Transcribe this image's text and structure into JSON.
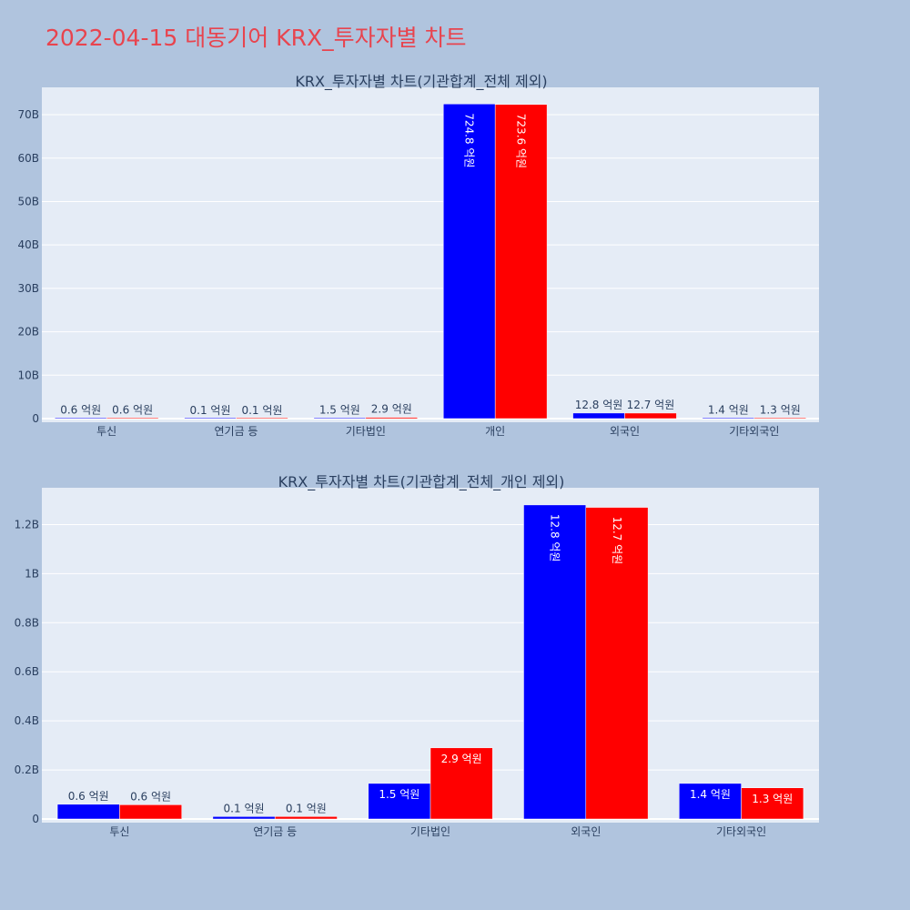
{
  "title": "2022-04-15 대동기어 KRX_투자자별 차트",
  "colors": {
    "background": "#b0c4de",
    "plot_bg": "#e5ecf6",
    "series1": "#0000ff",
    "series2": "#ff0000",
    "title": "#e8444e"
  },
  "chart_data": [
    {
      "type": "bar",
      "title": "KRX_투자자별 차트(기관합계_전체 제외)",
      "categories": [
        "투신",
        "연기금 등",
        "기타법인",
        "개인",
        "외국인",
        "기타외국인"
      ],
      "series": [
        {
          "color": "#0000ff",
          "values": [
            0.06,
            0.01,
            0.15,
            72.48,
            1.28,
            0.14
          ],
          "labels": [
            "0.6 억원",
            "0.1 억원",
            "1.5 억원",
            "724.8 억원",
            "12.8 억원",
            "1.4 억원"
          ]
        },
        {
          "color": "#ff0000",
          "values": [
            0.06,
            0.01,
            0.29,
            72.36,
            1.27,
            0.13
          ],
          "labels": [
            "0.6 억원",
            "0.1 억원",
            "2.9 억원",
            "723.6 억원",
            "12.7 억원",
            "1.3 억원"
          ]
        }
      ],
      "yticks": [
        0,
        10,
        20,
        30,
        40,
        50,
        60,
        70
      ],
      "ytick_labels": [
        "0",
        "10B",
        "20B",
        "30B",
        "40B",
        "50B",
        "60B",
        "70B"
      ],
      "ylim": [
        0,
        76.3
      ],
      "grid": true
    },
    {
      "type": "bar",
      "title": "KRX_투자자별 차트(기관합계_전체_개인 제외)",
      "categories": [
        "투신",
        "연기금 등",
        "기타법인",
        "외국인",
        "기타외국인"
      ],
      "series": [
        {
          "color": "#0000ff",
          "values": [
            0.06,
            0.01,
            0.145,
            1.28,
            0.145
          ],
          "labels": [
            "0.6 억원",
            "0.1 억원",
            "1.5 억원",
            "12.8 억원",
            "1.4 억원"
          ]
        },
        {
          "color": "#ff0000",
          "values": [
            0.058,
            0.01,
            0.29,
            1.27,
            0.127
          ],
          "labels": [
            "0.6 억원",
            "0.1 억원",
            "2.9 억원",
            "12.7 억원",
            "1.3 억원"
          ]
        }
      ],
      "yticks": [
        0,
        0.2,
        0.4,
        0.6,
        0.8,
        1.0,
        1.2
      ],
      "ytick_labels": [
        "0",
        "0.2B",
        "0.4B",
        "0.6B",
        "0.8B",
        "1B",
        "1.2B"
      ],
      "ylim": [
        0,
        1.35
      ],
      "grid": true
    }
  ]
}
